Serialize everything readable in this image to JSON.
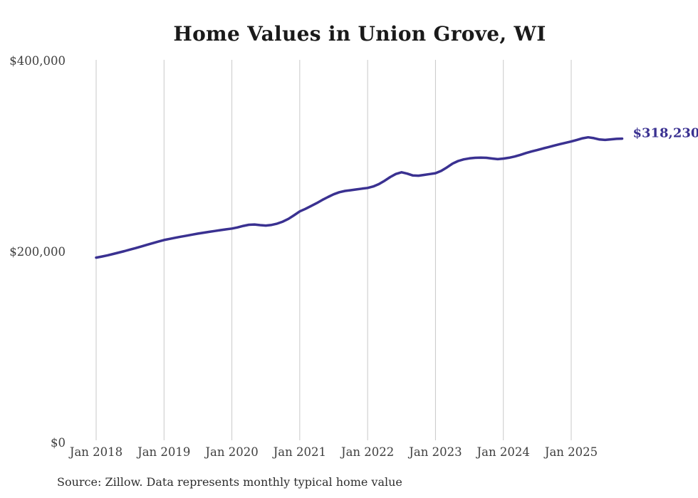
{
  "chart_data": {
    "type": "line",
    "title": "Home Values in Union Grove, WI",
    "series_name": "Monthly typical home value",
    "x_start": "Jan 2018",
    "x_end": "Oct 2025",
    "x_frequency": "monthly",
    "n_points": 94,
    "values": [
      193600,
      194700,
      196000,
      197400,
      198900,
      200400,
      202000,
      203600,
      205300,
      207000,
      208700,
      210400,
      212000,
      213200,
      214400,
      215500,
      216600,
      217700,
      218700,
      219700,
      220600,
      221500,
      222400,
      223200,
      224000,
      225200,
      226800,
      228000,
      228300,
      227600,
      227200,
      227800,
      229200,
      231300,
      234200,
      238000,
      242000,
      244600,
      247600,
      250700,
      254000,
      257100,
      259900,
      262100,
      263400,
      264200,
      265000,
      265800,
      266600,
      268100,
      270600,
      274100,
      278000,
      281200,
      283000,
      281600,
      279600,
      279400,
      280200,
      281100,
      282000,
      284400,
      288000,
      292000,
      294800,
      296500,
      297500,
      298100,
      298300,
      298100,
      297400,
      296700,
      297300,
      298200,
      299500,
      301200,
      303100,
      304800,
      306300,
      307900,
      309400,
      311000,
      312500,
      313900,
      315200,
      316900,
      318600,
      319600,
      318700,
      317300,
      316900,
      317500,
      318000,
      318230
    ],
    "last_value": 318230,
    "end_label": "$318,230",
    "x_tick_labels": [
      "Jan 2018",
      "Jan 2019",
      "Jan 2020",
      "Jan 2021",
      "Jan 2022",
      "Jan 2023",
      "Jan 2024",
      "Jan 2025"
    ],
    "y_ticks": [
      {
        "label": "$0",
        "value": 0
      },
      {
        "label": "$200,000",
        "value": 200000
      },
      {
        "label": "$400,000",
        "value": 400000
      }
    ],
    "ylim": [
      0,
      400000
    ],
    "grid": "vertical-only",
    "legend": "none",
    "line_color": "#3a3191",
    "grid_color": "#c9c9c9",
    "label_color": "#3f3f3f",
    "title_color": "#1a1a1a"
  },
  "footer": {
    "source": "Source: Zillow. Data represents monthly typical home value"
  }
}
